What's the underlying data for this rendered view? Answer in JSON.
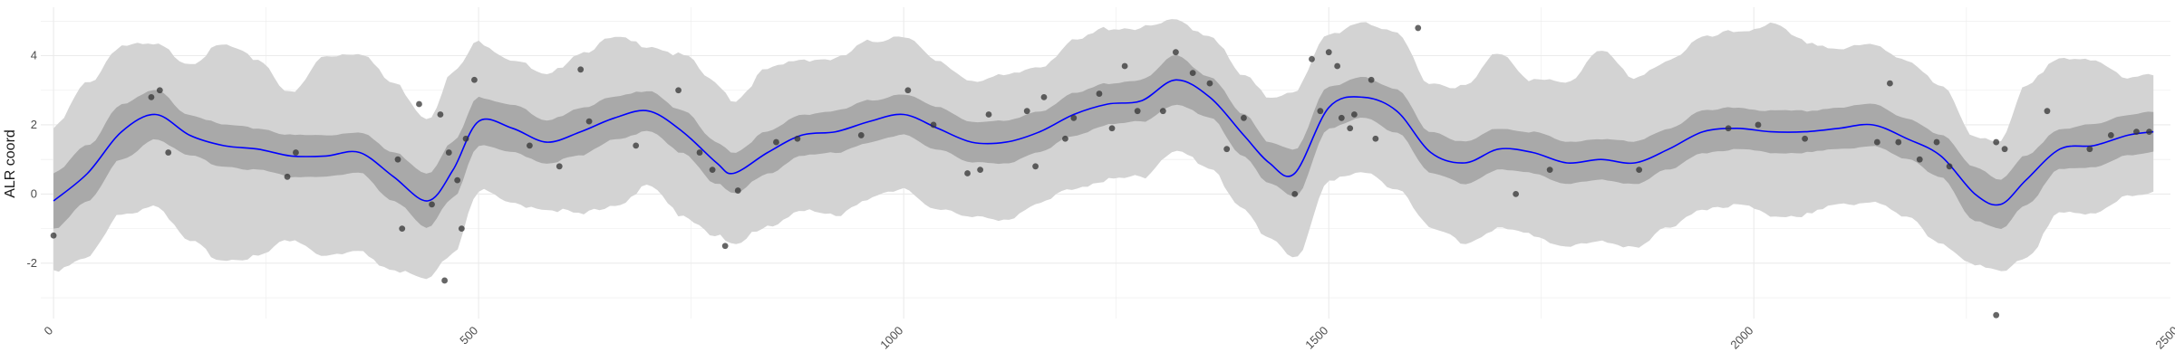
{
  "chart_data": {
    "type": "scatter",
    "title": "",
    "xlabel": "",
    "ylabel": "ALR coord",
    "xlim": [
      -15,
      2490
    ],
    "ylim": [
      -3.6,
      5.4
    ],
    "x_ticks": [
      0,
      500,
      1000,
      1500,
      2000,
      2500
    ],
    "x_tick_labels": [
      "0",
      "500",
      "1000",
      "1500",
      "2000",
      "2500"
    ],
    "y_ticks": [
      -2,
      0,
      2,
      4
    ],
    "y_tick_labels": [
      "-2",
      "0",
      "2",
      "4"
    ],
    "grid": true,
    "legend": "none",
    "colors": {
      "mean_line": "#0000ff",
      "inner_band": "#a9a9a9",
      "outer_band": "#d3d3d3",
      "points": "#333333",
      "grid": "#ebebeb"
    },
    "series": [
      {
        "kind": "line",
        "x": [
          0,
          40,
          80,
          120,
          160,
          200,
          240,
          280,
          320,
          360,
          400,
          440,
          470,
          500,
          540,
          580,
          620,
          660,
          700,
          740,
          780,
          800,
          840,
          880,
          920,
          960,
          1000,
          1040,
          1080,
          1120,
          1160,
          1200,
          1240,
          1280,
          1320,
          1360,
          1400,
          1430,
          1460,
          1500,
          1540,
          1580,
          1620,
          1660,
          1700,
          1740,
          1780,
          1820,
          1860,
          1900,
          1940,
          1980,
          2020,
          2060,
          2100,
          2140,
          2180,
          2220,
          2260,
          2290,
          2320,
          2360,
          2400,
          2440,
          2470
        ],
        "y": [
          -0.2,
          0.6,
          1.8,
          2.3,
          1.7,
          1.4,
          1.3,
          1.1,
          1.1,
          1.2,
          0.5,
          -0.2,
          0.7,
          2.1,
          1.9,
          1.5,
          1.8,
          2.2,
          2.4,
          1.8,
          0.9,
          0.6,
          1.2,
          1.7,
          1.8,
          2.1,
          2.3,
          1.9,
          1.5,
          1.5,
          1.8,
          2.3,
          2.6,
          2.7,
          3.3,
          2.8,
          1.7,
          0.9,
          0.6,
          2.5,
          2.8,
          2.4,
          1.2,
          0.9,
          1.3,
          1.2,
          0.9,
          1.0,
          0.9,
          1.3,
          1.8,
          1.9,
          1.8,
          1.8,
          1.9,
          2.0,
          1.6,
          1.1,
          0.0,
          -0.3,
          0.4,
          1.3,
          1.4,
          1.7,
          1.8
        ]
      },
      {
        "kind": "band",
        "y_low": [
          -1.0,
          -0.2,
          1.0,
          1.6,
          1.1,
          0.8,
          0.7,
          0.5,
          0.5,
          0.6,
          -0.2,
          -1.0,
          -0.1,
          1.4,
          1.2,
          0.9,
          1.1,
          1.6,
          1.8,
          1.2,
          0.3,
          0.0,
          0.6,
          1.1,
          1.2,
          1.5,
          1.7,
          1.3,
          0.9,
          0.9,
          1.2,
          1.7,
          2.0,
          2.1,
          2.6,
          2.2,
          1.1,
          0.3,
          -0.1,
          1.9,
          2.2,
          1.8,
          0.6,
          0.3,
          0.7,
          0.6,
          0.3,
          0.4,
          0.3,
          0.7,
          1.2,
          1.3,
          1.2,
          1.2,
          1.3,
          1.4,
          1.0,
          0.5,
          -0.8,
          -1.0,
          -0.3,
          0.7,
          0.8,
          1.1,
          1.2
        ],
        "y_high": [
          0.6,
          1.4,
          2.6,
          3.0,
          2.3,
          2.0,
          1.9,
          1.7,
          1.7,
          1.8,
          1.2,
          0.6,
          1.5,
          2.8,
          2.6,
          2.1,
          2.5,
          2.8,
          3.0,
          2.4,
          1.5,
          1.2,
          1.8,
          2.3,
          2.4,
          2.7,
          2.9,
          2.5,
          2.1,
          2.1,
          2.4,
          2.9,
          3.2,
          3.3,
          4.0,
          3.4,
          2.3,
          1.5,
          1.3,
          3.1,
          3.4,
          3.0,
          1.8,
          1.5,
          1.9,
          1.8,
          1.5,
          1.6,
          1.5,
          1.9,
          2.4,
          2.5,
          2.4,
          2.4,
          2.5,
          2.6,
          2.2,
          1.7,
          0.8,
          0.4,
          1.1,
          1.9,
          2.0,
          2.3,
          2.4
        ]
      },
      {
        "kind": "band",
        "y_low": [
          -2.2,
          -1.8,
          -0.6,
          -0.3,
          -1.4,
          -1.9,
          -1.8,
          -1.3,
          -1.8,
          -1.7,
          -2.2,
          -2.5,
          -1.7,
          0.1,
          -0.3,
          -0.4,
          -0.6,
          -0.3,
          0.2,
          -0.6,
          -1.2,
          -1.5,
          -0.9,
          -0.5,
          -0.6,
          -0.1,
          0.1,
          -0.4,
          -0.7,
          -0.7,
          -0.3,
          0.2,
          0.4,
          0.5,
          1.3,
          0.7,
          -0.4,
          -1.3,
          -1.9,
          0.4,
          0.6,
          0.2,
          -1.0,
          -1.4,
          -1.0,
          -1.2,
          -1.5,
          -1.4,
          -1.5,
          -1.0,
          -0.4,
          -0.3,
          -0.6,
          -0.6,
          -0.3,
          -0.2,
          -0.7,
          -1.4,
          -2.1,
          -2.2,
          -1.8,
          -0.6,
          -0.5,
          -0.1,
          0.0
        ],
        "y_high": [
          1.9,
          3.2,
          4.3,
          4.3,
          3.8,
          4.3,
          3.9,
          2.9,
          4.0,
          4.1,
          3.2,
          2.2,
          3.5,
          4.4,
          3.9,
          3.4,
          4.1,
          4.5,
          4.3,
          4.0,
          3.2,
          2.7,
          3.6,
          3.9,
          3.9,
          4.4,
          4.6,
          3.8,
          3.3,
          3.4,
          3.7,
          4.4,
          4.8,
          4.8,
          5.0,
          4.6,
          3.4,
          2.8,
          3.0,
          4.6,
          5.0,
          4.6,
          3.2,
          3.1,
          4.1,
          3.3,
          3.2,
          4.2,
          3.3,
          3.9,
          4.5,
          4.7,
          4.9,
          4.4,
          4.2,
          4.3,
          3.9,
          3.1,
          1.7,
          1.5,
          3.1,
          4.0,
          3.8,
          3.4,
          3.5
        ]
      },
      {
        "kind": "points",
        "x": [
          0,
          115,
          125,
          135,
          275,
          285,
          405,
          410,
          430,
          445,
          455,
          460,
          465,
          475,
          480,
          485,
          495,
          560,
          595,
          620,
          630,
          685,
          735,
          760,
          775,
          790,
          805,
          850,
          875,
          950,
          1005,
          1035,
          1075,
          1090,
          1100,
          1145,
          1155,
          1165,
          1190,
          1200,
          1230,
          1245,
          1260,
          1275,
          1305,
          1320,
          1340,
          1360,
          1380,
          1400,
          1460,
          1480,
          1490,
          1500,
          1510,
          1515,
          1525,
          1530,
          1550,
          1555,
          1605,
          1720,
          1760,
          1865,
          1970,
          2005,
          2060,
          2145,
          2160,
          2170,
          2195,
          2215,
          2230,
          2285,
          2285,
          2295,
          2345,
          2395,
          2420,
          2450,
          2465
        ],
        "y": [
          -1.2,
          2.8,
          3.0,
          1.2,
          0.5,
          1.2,
          1.0,
          -1.0,
          2.6,
          -0.3,
          2.3,
          -2.5,
          1.2,
          0.4,
          -1.0,
          1.6,
          3.3,
          1.4,
          0.8,
          3.6,
          2.1,
          1.4,
          3.0,
          1.2,
          0.7,
          -1.5,
          0.1,
          1.5,
          1.6,
          1.7,
          3.0,
          2.0,
          0.6,
          0.7,
          2.3,
          2.4,
          0.8,
          2.8,
          1.6,
          2.2,
          2.9,
          1.9,
          3.7,
          2.4,
          2.4,
          4.1,
          3.5,
          3.2,
          1.3,
          2.2,
          0.0,
          3.9,
          2.4,
          4.1,
          3.7,
          2.2,
          1.9,
          2.3,
          3.3,
          1.6,
          4.8,
          0.0,
          0.7,
          0.7,
          1.9,
          2.0,
          1.6,
          1.5,
          3.2,
          1.5,
          1.0,
          1.5,
          0.8,
          -3.5,
          1.5,
          1.3,
          2.4,
          1.3,
          1.7,
          1.8,
          1.8
        ]
      }
    ]
  }
}
